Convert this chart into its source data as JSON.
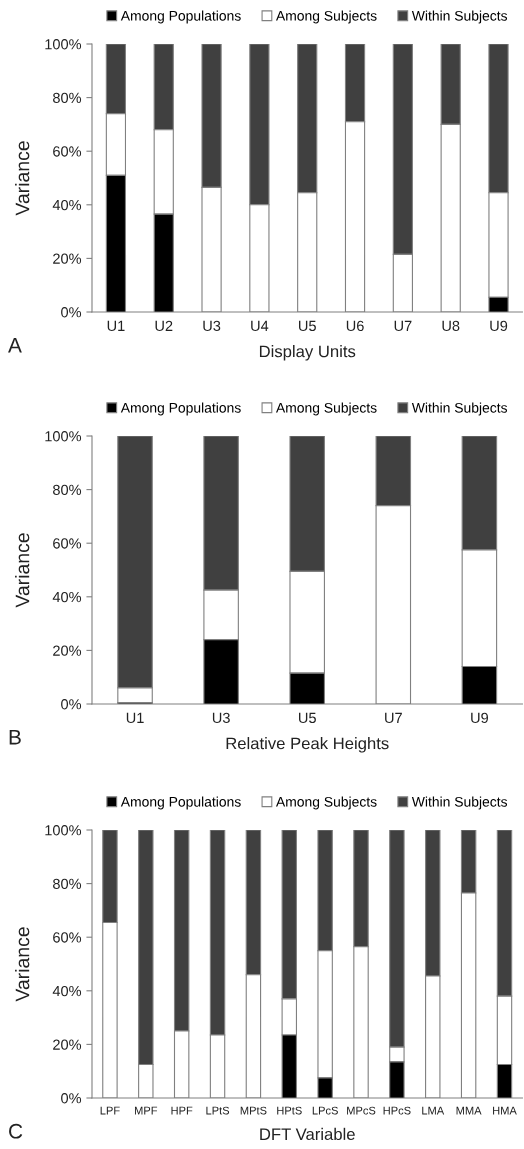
{
  "chart_data": [
    {
      "type": "bar",
      "stacked": true,
      "xlabel": "Display Units",
      "ylabel": "Variance",
      "annotations": [
        "A"
      ],
      "legend": "top",
      "grid": false,
      "categories": [
        "U1",
        "U2",
        "U3",
        "U4",
        "U5",
        "U6",
        "U7",
        "U8",
        "U9"
      ],
      "ylim": [
        0,
        100
      ],
      "yticks": [
        {
          "value": 0,
          "label": "0%"
        },
        {
          "value": 20,
          "label": "20%"
        },
        {
          "value": 40,
          "label": "40%"
        },
        {
          "value": 60,
          "label": "60%"
        },
        {
          "value": 80,
          "label": "80%"
        },
        {
          "value": 100,
          "label": "100%"
        }
      ],
      "series": [
        {
          "name": "Among Populations",
          "color": "#000000",
          "values": [
            51,
            36.5,
            0,
            0,
            0,
            0,
            0,
            0,
            5.5
          ]
        },
        {
          "name": "Among Subjects",
          "color": "#ffffff",
          "values": [
            23,
            31.5,
            46.5,
            40,
            44.5,
            71,
            21.5,
            70,
            39
          ]
        },
        {
          "name": "Within Subjects",
          "color": "#404040",
          "values": [
            26,
            32,
            53.5,
            60,
            55.5,
            29,
            78.5,
            30,
            55.5
          ]
        }
      ]
    },
    {
      "type": "bar",
      "stacked": true,
      "xlabel": "Relative Peak Heights",
      "ylabel": "Variance",
      "annotations": [
        "B"
      ],
      "legend": "top",
      "grid": false,
      "categories": [
        "U1",
        "U3",
        "U5",
        "U7",
        "U9"
      ],
      "ylim": [
        0,
        100
      ],
      "yticks": [
        {
          "value": 0,
          "label": "0%"
        },
        {
          "value": 20,
          "label": "20%"
        },
        {
          "value": 40,
          "label": "40%"
        },
        {
          "value": 60,
          "label": "60%"
        },
        {
          "value": 80,
          "label": "80%"
        },
        {
          "value": 100,
          "label": "100%"
        }
      ],
      "series": [
        {
          "name": "Among Populations",
          "color": "#000000",
          "values": [
            0.5,
            24,
            11.5,
            0,
            14
          ]
        },
        {
          "name": "Among Subjects",
          "color": "#ffffff",
          "values": [
            5.5,
            18.5,
            38,
            74,
            43.5
          ]
        },
        {
          "name": "Within Subjects",
          "color": "#404040",
          "values": [
            94,
            57.5,
            50.5,
            26,
            42.5
          ]
        }
      ]
    },
    {
      "type": "bar",
      "stacked": true,
      "xlabel": "DFT Variable",
      "ylabel": "Variance",
      "annotations": [
        "C"
      ],
      "legend": "top",
      "grid": false,
      "categories": [
        "LPF",
        "MPF",
        "HPF",
        "LPtS",
        "MPtS",
        "HPtS",
        "LPcS",
        "MPcS",
        "HPcS",
        "LMA",
        "MMA",
        "HMA"
      ],
      "ylim": [
        0,
        100
      ],
      "yticks": [
        {
          "value": 0,
          "label": "0%"
        },
        {
          "value": 20,
          "label": "20%"
        },
        {
          "value": 40,
          "label": "40%"
        },
        {
          "value": 60,
          "label": "60%"
        },
        {
          "value": 80,
          "label": "80%"
        },
        {
          "value": 100,
          "label": "100%"
        }
      ],
      "series": [
        {
          "name": "Among Populations",
          "color": "#000000",
          "values": [
            0,
            0,
            0,
            0,
            0,
            23.5,
            7.5,
            0,
            13.5,
            0,
            0,
            12.5
          ]
        },
        {
          "name": "Among Subjects",
          "color": "#ffffff",
          "values": [
            65.5,
            12.5,
            25,
            23.5,
            46,
            13.5,
            47.5,
            56.5,
            5.5,
            45.5,
            76.5,
            25.5
          ]
        },
        {
          "name": "Within Subjects",
          "color": "#404040",
          "values": [
            34.5,
            87.5,
            75,
            76.5,
            54,
            63,
            45,
            43.5,
            81,
            54.5,
            23.5,
            62
          ]
        }
      ]
    }
  ]
}
